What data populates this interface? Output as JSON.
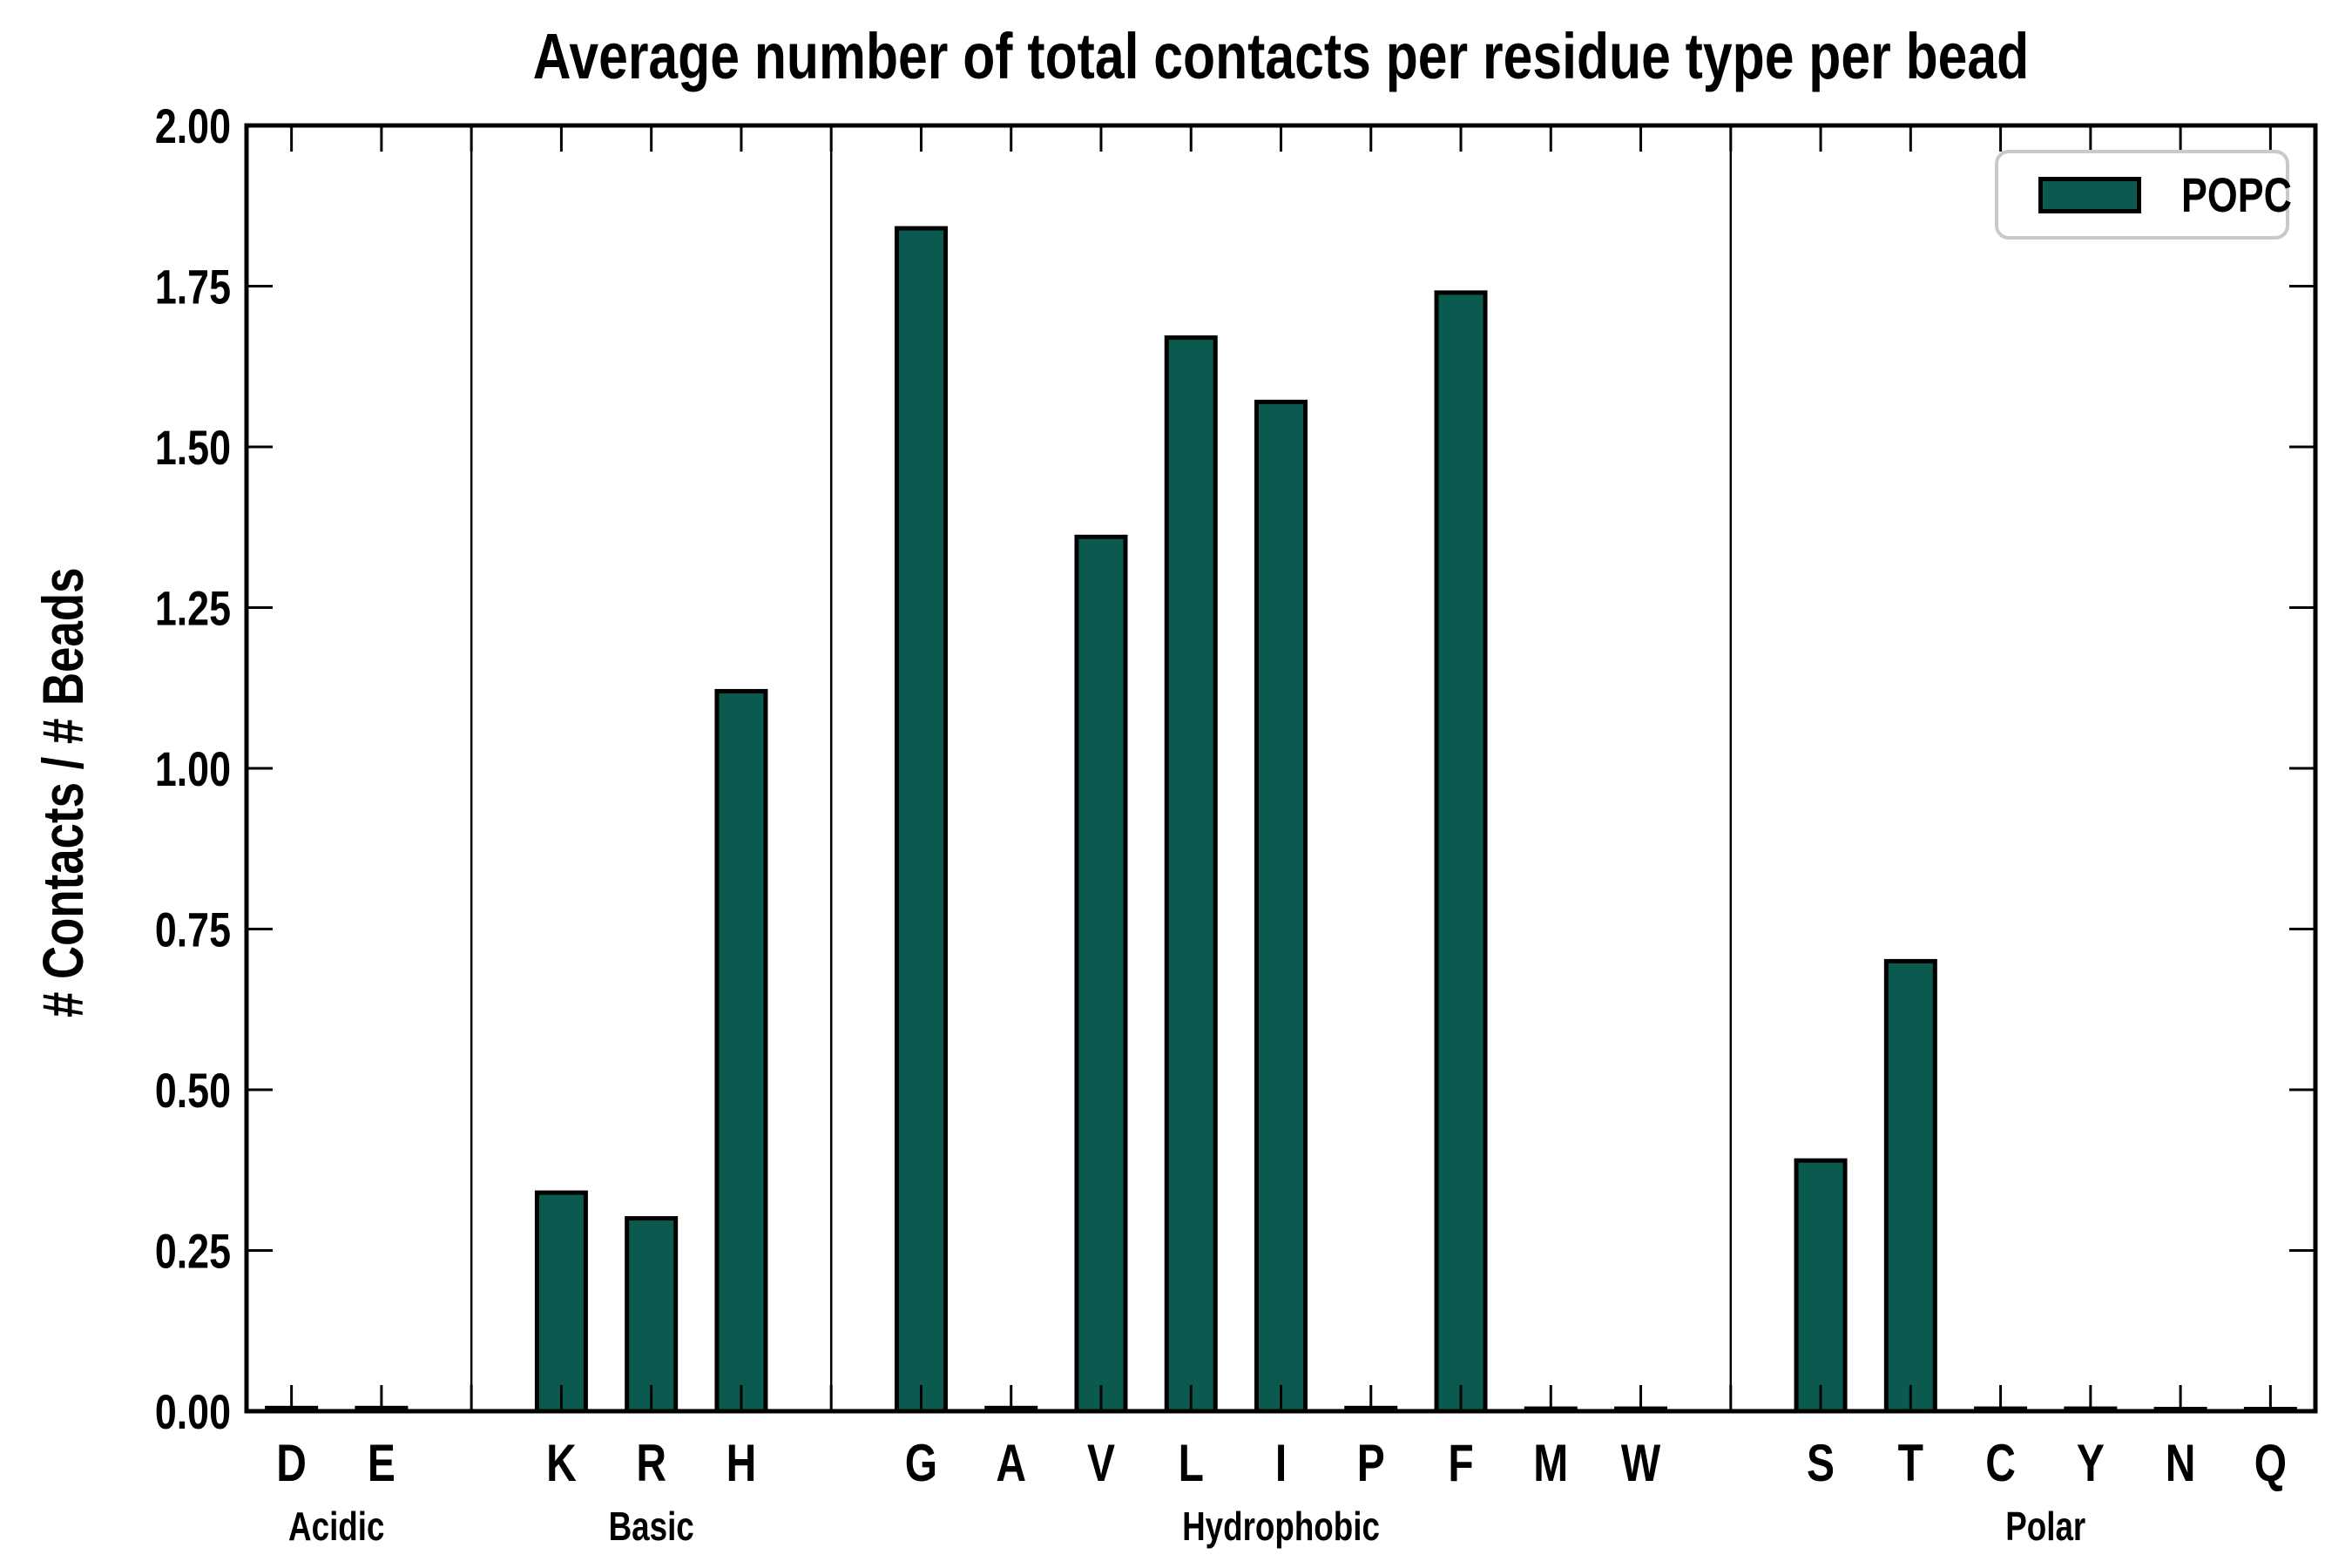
{
  "chart_data": {
    "type": "bar",
    "title": "Average number of total contacts per residue type per bead",
    "ylabel": "# Contacts / # Beads",
    "xlabel": "",
    "ylim": [
      0.0,
      2.0
    ],
    "grid": false,
    "tick_direction": "in",
    "yticks": [
      {
        "value": 0.0,
        "label": "0.00"
      },
      {
        "value": 0.25,
        "label": "0.25"
      },
      {
        "value": 0.5,
        "label": "0.50"
      },
      {
        "value": 0.75,
        "label": "0.75"
      },
      {
        "value": 1.0,
        "label": "1.00"
      },
      {
        "value": 1.25,
        "label": "1.25"
      },
      {
        "value": 1.5,
        "label": "1.50"
      },
      {
        "value": 1.75,
        "label": "1.75"
      },
      {
        "value": 2.0,
        "label": "2.00"
      }
    ],
    "groups": [
      {
        "name": "Acidic",
        "residues": [
          "D",
          "E"
        ],
        "values": [
          0.005,
          0.005
        ]
      },
      {
        "name": "Basic",
        "residues": [
          "K",
          "R",
          "H"
        ],
        "values": [
          0.34,
          0.3,
          1.12
        ]
      },
      {
        "name": "Hydrophobic",
        "residues": [
          "G",
          "A",
          "V",
          "L",
          "I",
          "P",
          "F",
          "M",
          "W"
        ],
        "values": [
          1.84,
          0.005,
          1.36,
          1.67,
          1.57,
          0.005,
          1.74,
          0.004,
          0.004
        ]
      },
      {
        "name": "Polar",
        "residues": [
          "S",
          "T",
          "C",
          "Y",
          "N",
          "Q"
        ],
        "values": [
          0.39,
          0.7,
          0.004,
          0.004,
          0.003,
          0.003
        ]
      }
    ],
    "legend": {
      "label": "POPC",
      "position": "upper right"
    },
    "colors": {
      "bar_fill": "#0A5A50",
      "bar_edge": "#000000",
      "axis": "#000000",
      "separator": "#000000",
      "legend_border": "#c9c9c9",
      "background": "#ffffff"
    }
  }
}
